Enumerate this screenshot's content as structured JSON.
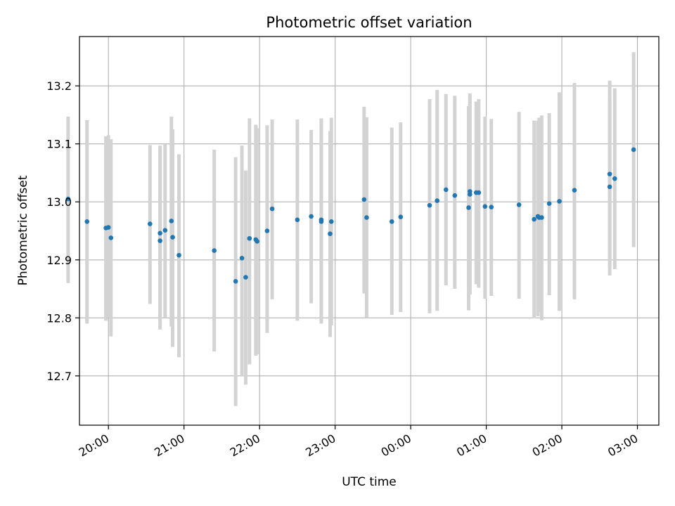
{
  "chart_data": {
    "type": "scatter",
    "title": "Photometric offset variation",
    "xlabel": "UTC time",
    "ylabel": "Photometric offset",
    "x_unit": "UTC time",
    "xlim": [
      "19:37",
      "03:17"
    ],
    "ylim": [
      12.615,
      13.285
    ],
    "x_ticks": [
      "20:00",
      "21:00",
      "22:00",
      "23:00",
      "00:00",
      "01:00",
      "02:00",
      "03:00"
    ],
    "y_ticks": [
      12.7,
      12.8,
      12.9,
      13.0,
      13.1,
      13.2
    ],
    "y_tick_labels": [
      "12.7",
      "12.8",
      "12.9",
      "13.0",
      "13.1",
      "13.2"
    ],
    "grid": true,
    "x_tick_rotation_deg": 30,
    "colors": {
      "points": "#1f77b4",
      "error_bars": "#d3d3d3",
      "grid": "#b0b0b0"
    },
    "series": [
      {
        "x": [
          "19:28",
          "19:43",
          "19:58",
          "20:00",
          "20:02",
          "20:33",
          "20:41",
          "20:41",
          "20:45",
          "20:50",
          "20:51",
          "20:56",
          "21:24",
          "21:41",
          "21:46",
          "21:49",
          "21:52",
          "21:57",
          "21:58",
          "22:06",
          "22:10",
          "22:30",
          "22:41",
          "22:49",
          "22:49",
          "22:56",
          "22:57",
          "23:23",
          "23:25",
          "23:45",
          "23:52",
          "00:15",
          "00:21",
          "00:28",
          "00:35",
          "00:46",
          "00:47",
          "00:47",
          "00:52",
          "00:54",
          "00:59",
          "01:04",
          "01:26",
          "01:38",
          "01:41",
          "01:42",
          "01:44",
          "01:50",
          "01:58",
          "02:10",
          "02:38",
          "02:38",
          "02:42",
          "02:57"
        ],
        "y": [
          13.005,
          12.966,
          12.955,
          12.956,
          12.938,
          12.962,
          12.933,
          12.946,
          12.951,
          12.967,
          12.939,
          12.908,
          12.916,
          12.863,
          12.903,
          12.87,
          12.937,
          12.935,
          12.932,
          12.95,
          12.988,
          12.969,
          12.975,
          12.969,
          12.966,
          12.945,
          12.966,
          13.004,
          12.973,
          12.966,
          12.974,
          12.994,
          13.002,
          13.021,
          13.011,
          12.99,
          13.018,
          13.013,
          13.016,
          13.016,
          12.992,
          12.991,
          12.995,
          12.97,
          12.975,
          12.973,
          12.973,
          12.997,
          13.001,
          13.02,
          13.048,
          13.026,
          13.04,
          13.09
        ],
        "yerr_low": [
          12.86,
          12.79,
          12.795,
          12.8,
          12.768,
          12.824,
          12.78,
          12.8,
          12.8,
          12.785,
          12.75,
          12.732,
          12.742,
          12.648,
          12.7,
          12.685,
          12.72,
          12.735,
          12.737,
          12.774,
          12.832,
          12.795,
          12.825,
          12.795,
          12.79,
          12.767,
          12.787,
          12.842,
          12.8,
          12.805,
          12.81,
          12.808,
          12.812,
          12.856,
          12.85,
          12.813,
          12.84,
          12.852,
          12.858,
          12.852,
          12.833,
          12.838,
          12.833,
          12.799,
          12.803,
          12.81,
          12.796,
          12.839,
          12.812,
          12.832,
          12.887,
          12.873,
          12.884,
          12.922
        ],
        "yerr_high": [
          13.147,
          13.141,
          13.113,
          13.115,
          13.108,
          13.098,
          13.089,
          13.097,
          13.1,
          13.147,
          13.125,
          13.082,
          13.09,
          13.077,
          13.097,
          13.054,
          13.144,
          13.133,
          13.127,
          13.132,
          13.142,
          13.142,
          13.124,
          13.144,
          13.14,
          13.122,
          13.145,
          13.164,
          13.146,
          13.128,
          13.137,
          13.177,
          13.193,
          13.186,
          13.183,
          13.165,
          13.187,
          13.18,
          13.173,
          13.177,
          13.147,
          13.143,
          13.155,
          13.14,
          13.14,
          13.145,
          13.149,
          13.153,
          13.189,
          13.205,
          13.209,
          13.175,
          13.196,
          13.258
        ]
      }
    ]
  }
}
